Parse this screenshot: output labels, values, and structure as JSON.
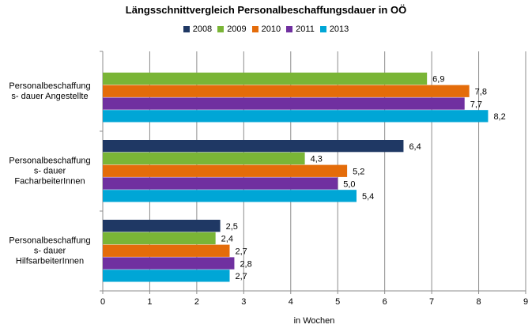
{
  "chart_data": {
    "type": "bar",
    "orientation": "horizontal",
    "title": "Längsschnittvergleich Personalbeschaffungsdauer in OÖ",
    "xlabel": "in Wochen",
    "ylabel": "",
    "xlim": [
      0,
      9
    ],
    "x_ticks": [
      "0",
      "1",
      "2",
      "3",
      "4",
      "5",
      "6",
      "7",
      "8",
      "9"
    ],
    "grid": "vertical",
    "legend_position": "top",
    "categories": [
      "Personalbeschaffungs- dauer Angestellte",
      "Personalbeschaffungs- dauer FacharbeiterInnen",
      "Personalbeschaffungs- dauer HilfsarbeiterInnen"
    ],
    "category_lines": [
      [
        "Personalbeschaffung",
        "s- dauer Angestellte"
      ],
      [
        "Personalbeschaffung",
        "s- dauer",
        "FacharbeiterInnen"
      ],
      [
        "Personalbeschaffung",
        "s- dauer",
        "HilfsarbeiterInnen"
      ]
    ],
    "series": [
      {
        "name": "2008",
        "color": "#1F3864",
        "values": [
          null,
          6.4,
          2.5
        ],
        "labels": [
          "",
          "6,4",
          "2,5"
        ]
      },
      {
        "name": "2009",
        "color": "#7AB536",
        "values": [
          6.9,
          4.3,
          2.4
        ],
        "labels": [
          "6,9",
          "4,3",
          "2,4"
        ]
      },
      {
        "name": "2010",
        "color": "#E46C0A",
        "values": [
          7.8,
          5.2,
          2.7
        ],
        "labels": [
          "7,8",
          "5,2",
          "2,7"
        ]
      },
      {
        "name": "2011",
        "color": "#7030A0",
        "values": [
          7.7,
          5.0,
          2.8
        ],
        "labels": [
          "7,7",
          "5,0",
          "2,8"
        ]
      },
      {
        "name": "2013",
        "color": "#00A6D6",
        "values": [
          8.2,
          5.4,
          2.7
        ],
        "labels": [
          "8,2",
          "5,4",
          "2,7"
        ]
      }
    ]
  }
}
